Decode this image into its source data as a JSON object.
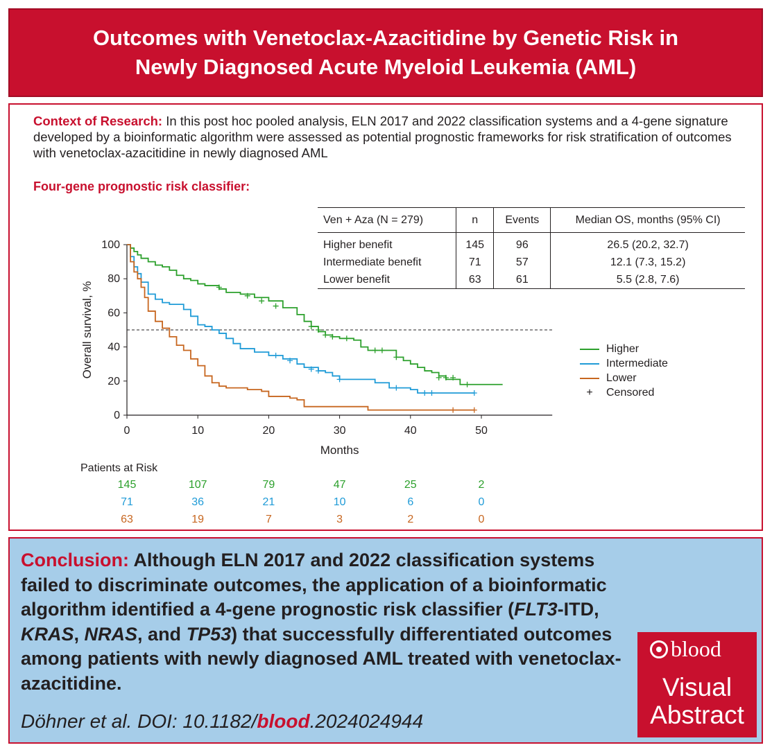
{
  "header": {
    "line1": "Outcomes with Venetoclax-Azacitidine by Genetic Risk in",
    "line2": "Newly Diagnosed Acute Myeloid Leukemia (AML)"
  },
  "context": {
    "label": "Context of Research:",
    "text": " In this post hoc pooled analysis, ELN 2017 and 2022 classification systems and a 4-gene signature developed by a bioinformatic algorithm were assessed as potential prognostic frameworks for risk stratification of outcomes with venetoclax-azacitidine in newly diagnosed AML"
  },
  "subheading": "Four-gene prognostic risk classifier:",
  "table": {
    "headers": [
      "Ven + Aza (N = 279)",
      "n",
      "Events",
      "Median OS, months (95% CI)"
    ],
    "rows": [
      [
        "Higher benefit",
        "145",
        "96",
        "26.5 (20.2, 32.7)"
      ],
      [
        "Intermediate benefit",
        "71",
        "57",
        "12.1 (7.3, 15.2)"
      ],
      [
        "Lower benefit",
        "63",
        "61",
        "5.5 (2.8, 7.6)"
      ]
    ]
  },
  "chart_data": {
    "type": "line",
    "xlabel": "Months",
    "ylabel": "Overall survival, %",
    "xlim": [
      0,
      60
    ],
    "ylim": [
      0,
      100
    ],
    "xticks": [
      0,
      10,
      20,
      30,
      40,
      50
    ],
    "yticks": [
      0,
      20,
      40,
      60,
      80,
      100
    ],
    "reference_line": 50,
    "series": [
      {
        "name": "Higher",
        "color": "#2ca02c",
        "points": [
          [
            0,
            100
          ],
          [
            0.5,
            98
          ],
          [
            1,
            96
          ],
          [
            1.5,
            94
          ],
          [
            2,
            92
          ],
          [
            3,
            90
          ],
          [
            4,
            88
          ],
          [
            5,
            87
          ],
          [
            6,
            85
          ],
          [
            7,
            82
          ],
          [
            8,
            80
          ],
          [
            9,
            79
          ],
          [
            10,
            77
          ],
          [
            11,
            76
          ],
          [
            12,
            76
          ],
          [
            13,
            74
          ],
          [
            14,
            72
          ],
          [
            16,
            71
          ],
          [
            18,
            69
          ],
          [
            20,
            67
          ],
          [
            22,
            63
          ],
          [
            24,
            59
          ],
          [
            25,
            55
          ],
          [
            26,
            52
          ],
          [
            27,
            49
          ],
          [
            28,
            47
          ],
          [
            29,
            46
          ],
          [
            30,
            45
          ],
          [
            32,
            44
          ],
          [
            33,
            40
          ],
          [
            34,
            38
          ],
          [
            37,
            38
          ],
          [
            38,
            34
          ],
          [
            39,
            32
          ],
          [
            40,
            30
          ],
          [
            41,
            28
          ],
          [
            42,
            26
          ],
          [
            43,
            25
          ],
          [
            44,
            23
          ],
          [
            45,
            21
          ],
          [
            47,
            18
          ],
          [
            53,
            18
          ]
        ],
        "censors": [
          [
            13,
            75
          ],
          [
            17,
            70
          ],
          [
            19,
            67
          ],
          [
            21,
            64
          ],
          [
            26,
            52
          ],
          [
            27,
            50
          ],
          [
            28,
            47
          ],
          [
            29,
            46
          ],
          [
            31,
            45
          ],
          [
            35,
            38
          ],
          [
            36,
            38
          ],
          [
            38,
            34
          ],
          [
            44,
            22
          ],
          [
            45,
            22
          ],
          [
            46,
            22
          ],
          [
            48,
            18
          ]
        ]
      },
      {
        "name": "Intermediate",
        "color": "#1f9bd7",
        "points": [
          [
            0,
            100
          ],
          [
            0.5,
            93
          ],
          [
            1,
            87
          ],
          [
            1.5,
            83
          ],
          [
            2,
            78
          ],
          [
            3,
            71
          ],
          [
            4,
            68
          ],
          [
            5,
            66
          ],
          [
            6,
            65
          ],
          [
            8,
            62
          ],
          [
            9,
            58
          ],
          [
            10,
            53
          ],
          [
            11,
            52
          ],
          [
            12,
            50
          ],
          [
            13,
            48
          ],
          [
            14,
            45
          ],
          [
            15,
            42
          ],
          [
            16,
            39
          ],
          [
            18,
            37
          ],
          [
            20,
            35
          ],
          [
            22,
            33
          ],
          [
            24,
            30
          ],
          [
            25,
            28
          ],
          [
            27,
            26
          ],
          [
            28,
            25
          ],
          [
            29,
            23
          ],
          [
            30,
            21
          ],
          [
            35,
            19
          ],
          [
            37,
            16
          ],
          [
            40,
            15
          ],
          [
            41,
            13
          ],
          [
            49,
            13
          ]
        ],
        "censors": [
          [
            21,
            35
          ],
          [
            23,
            32
          ],
          [
            26,
            27
          ],
          [
            27,
            26
          ],
          [
            30,
            21
          ],
          [
            38,
            16
          ],
          [
            42,
            13
          ],
          [
            43,
            13
          ],
          [
            49,
            13
          ]
        ]
      },
      {
        "name": "Lower",
        "color": "#c7661f",
        "points": [
          [
            0,
            100
          ],
          [
            0.5,
            90
          ],
          [
            1,
            84
          ],
          [
            1.5,
            80
          ],
          [
            2,
            75
          ],
          [
            2.5,
            69
          ],
          [
            3,
            61
          ],
          [
            4,
            55
          ],
          [
            5,
            51
          ],
          [
            6,
            46
          ],
          [
            7,
            41
          ],
          [
            8,
            38
          ],
          [
            9,
            33
          ],
          [
            10,
            29
          ],
          [
            11,
            23
          ],
          [
            12,
            19
          ],
          [
            13,
            17
          ],
          [
            14,
            16
          ],
          [
            17,
            15
          ],
          [
            19,
            14
          ],
          [
            20,
            11
          ],
          [
            22,
            11
          ],
          [
            23,
            10
          ],
          [
            24,
            9
          ],
          [
            25,
            5
          ],
          [
            33,
            5
          ],
          [
            34,
            3
          ],
          [
            49,
            3
          ]
        ],
        "censors": [
          [
            46,
            3
          ],
          [
            49,
            3
          ]
        ]
      }
    ],
    "legend": [
      "Higher",
      "Intermediate",
      "Lower",
      "Censored"
    ],
    "patients_at_risk": {
      "label": "Patients at Risk",
      "times": [
        0,
        10,
        20,
        30,
        40,
        50
      ],
      "rows": [
        {
          "name": "Higher",
          "values": [
            "145",
            "107",
            "79",
            "47",
            "25",
            "2"
          ]
        },
        {
          "name": "Intermediate",
          "values": [
            "71",
            "36",
            "21",
            "10",
            "6",
            "0"
          ]
        },
        {
          "name": "Lower",
          "values": [
            "63",
            "19",
            "7",
            "3",
            "2",
            "0"
          ]
        }
      ]
    }
  },
  "conclusion": {
    "label": "Conclusion:",
    "part1": " Although ELN 2017 and 2022 classification systems failed to discriminate outcomes, the application of a bioinformatic algorithm identified a 4-gene prognostic risk classifier (",
    "gene1": "FLT3",
    "part2": "-ITD, ",
    "gene2": "KRAS",
    "part3": ", ",
    "gene3": "NRAS",
    "part4": ", and ",
    "gene4": "TP53",
    "part5": ") that successfully differentiated outcomes among patients with newly diagnosed AML treated with venetoclax-azacitidine."
  },
  "citation": {
    "prefix": "Döhner et al. DOI: 10.1182/",
    "journal": "blood",
    "suffix": ".2024024944"
  },
  "badge": {
    "logo": "blood",
    "line1": "Visual",
    "line2": "Abstract"
  }
}
